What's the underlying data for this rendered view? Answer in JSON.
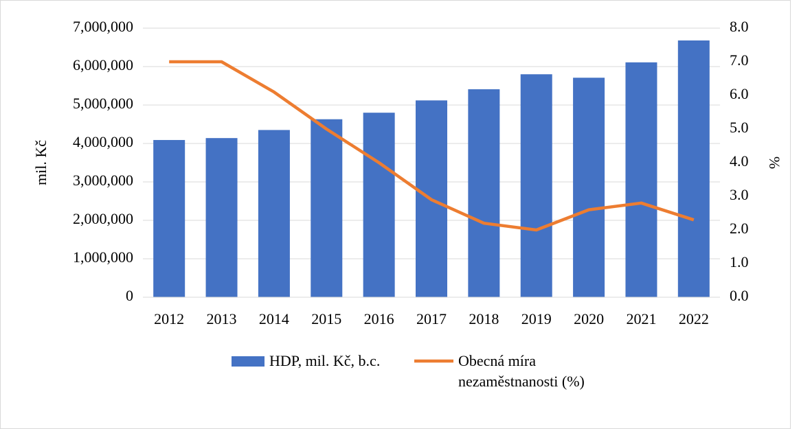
{
  "chart_data": {
    "type": "bar",
    "categories": [
      "2012",
      "2013",
      "2014",
      "2015",
      "2016",
      "2017",
      "2018",
      "2019",
      "2020",
      "2021",
      "2022"
    ],
    "series": [
      {
        "name": "HDP, mil. Kč, b.c.",
        "color": "#4472c4",
        "type": "bar",
        "values": [
          4090000,
          4140000,
          4350000,
          4630000,
          4800000,
          5120000,
          5410000,
          5800000,
          5710000,
          6110000,
          6680000
        ]
      },
      {
        "name": "Obecná míra nezaměstnanosti (%)",
        "color": "#ed7d31",
        "type": "line",
        "axis": "y2",
        "values": [
          7.0,
          7.0,
          6.1,
          5.0,
          4.0,
          2.9,
          2.2,
          2.0,
          2.6,
          2.8,
          2.3
        ]
      }
    ],
    "ylabel": "mil. Kč",
    "y2label": "%",
    "ylim": [
      0,
      7000000
    ],
    "yticks": [
      0,
      {
        "value": 1000000,
        "label": "1,000,000"
      },
      {
        "value": 2000000,
        "label": "2,000,000"
      },
      {
        "value": 3000000,
        "label": "3,000,000"
      },
      {
        "value": 4000000,
        "label": "4,000,000"
      },
      {
        "value": 5000000,
        "label": "5,000,000"
      },
      {
        "value": 6000000,
        "label": "6,000,000"
      },
      {
        "value": 7000000,
        "label": "7,000,000"
      }
    ],
    "y2lim": [
      0,
      8
    ],
    "y2ticks": [
      {
        "value": 0,
        "label": "0.0"
      },
      {
        "value": 1,
        "label": "1.0"
      },
      {
        "value": 2,
        "label": "2.0"
      },
      {
        "value": 3,
        "label": "3.0"
      },
      {
        "value": 4,
        "label": "4.0"
      },
      {
        "value": 5,
        "label": "5.0"
      },
      {
        "value": 6,
        "label": "6.0"
      },
      {
        "value": 7,
        "label": "7.0"
      },
      {
        "value": 8,
        "label": "8.0"
      }
    ],
    "grid": true,
    "legend": "bottom"
  }
}
